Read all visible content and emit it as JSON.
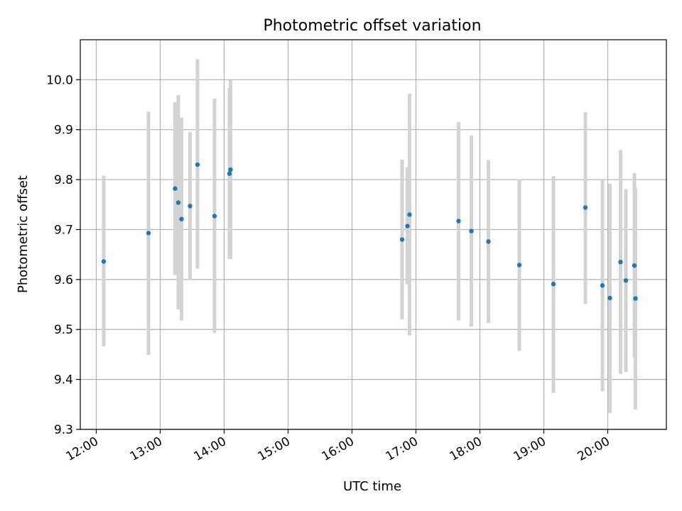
{
  "chart_data": {
    "type": "scatter",
    "title": "Photometric offset variation",
    "xlabel": "UTC time",
    "ylabel": "Photometric offset",
    "xlim": [
      "11:45",
      "20:55"
    ],
    "ylim": [
      9.3,
      10.08
    ],
    "x_ticks": [
      "12:00",
      "13:00",
      "14:00",
      "15:00",
      "16:00",
      "17:00",
      "18:00",
      "19:00",
      "20:00"
    ],
    "y_ticks": [
      "9.3",
      "9.4",
      "9.5",
      "9.6",
      "9.7",
      "9.8",
      "9.9",
      "10.0"
    ],
    "grid": true,
    "series": [
      {
        "points": [
          {
            "x": "12:07",
            "y": 9.636,
            "ylow": 9.466,
            "yhigh": 9.808
          },
          {
            "x": "12:49",
            "y": 9.693,
            "ylow": 9.449,
            "yhigh": 9.936
          },
          {
            "x": "13:14",
            "y": 9.782,
            "ylow": 9.609,
            "yhigh": 9.955
          },
          {
            "x": "13:17",
            "y": 9.754,
            "ylow": 9.54,
            "yhigh": 9.969
          },
          {
            "x": "13:20",
            "y": 9.721,
            "ylow": 9.518,
            "yhigh": 9.924
          },
          {
            "x": "13:28",
            "y": 9.747,
            "ylow": 9.6,
            "yhigh": 9.895
          },
          {
            "x": "13:35",
            "y": 9.83,
            "ylow": 9.622,
            "yhigh": 10.041
          },
          {
            "x": "13:51",
            "y": 9.727,
            "ylow": 9.493,
            "yhigh": 9.962
          },
          {
            "x": "14:05",
            "y": 9.812,
            "ylow": 9.641,
            "yhigh": 9.983
          },
          {
            "x": "14:06",
            "y": 9.82,
            "ylow": 9.641,
            "yhigh": 9.999
          },
          {
            "x": "16:47",
            "y": 9.68,
            "ylow": 9.52,
            "yhigh": 9.84
          },
          {
            "x": "16:52",
            "y": 9.707,
            "ylow": 9.59,
            "yhigh": 9.825
          },
          {
            "x": "16:54",
            "y": 9.73,
            "ylow": 9.488,
            "yhigh": 9.972
          },
          {
            "x": "17:40",
            "y": 9.717,
            "ylow": 9.518,
            "yhigh": 9.915
          },
          {
            "x": "17:52",
            "y": 9.697,
            "ylow": 9.506,
            "yhigh": 9.888
          },
          {
            "x": "18:08",
            "y": 9.676,
            "ylow": 9.513,
            "yhigh": 9.839
          },
          {
            "x": "18:37",
            "y": 9.629,
            "ylow": 9.457,
            "yhigh": 9.801
          },
          {
            "x": "19:09",
            "y": 9.591,
            "ylow": 9.373,
            "yhigh": 9.807
          },
          {
            "x": "19:39",
            "y": 9.744,
            "ylow": 9.551,
            "yhigh": 9.935
          },
          {
            "x": "19:55",
            "y": 9.588,
            "ylow": 9.376,
            "yhigh": 9.8
          },
          {
            "x": "20:02",
            "y": 9.563,
            "ylow": 9.333,
            "yhigh": 9.792
          },
          {
            "x": "20:12",
            "y": 9.635,
            "ylow": 9.411,
            "yhigh": 9.859
          },
          {
            "x": "20:17",
            "y": 9.598,
            "ylow": 9.415,
            "yhigh": 9.781
          },
          {
            "x": "20:25",
            "y": 9.628,
            "ylow": 9.443,
            "yhigh": 9.813
          },
          {
            "x": "20:26",
            "y": 9.562,
            "ylow": 9.34,
            "yhigh": 9.783
          }
        ]
      }
    ],
    "colors": {
      "point": "#1f77b4",
      "errorbar": "#d3d3d3",
      "grid": "#b0b0b0",
      "axis": "#000000"
    }
  }
}
